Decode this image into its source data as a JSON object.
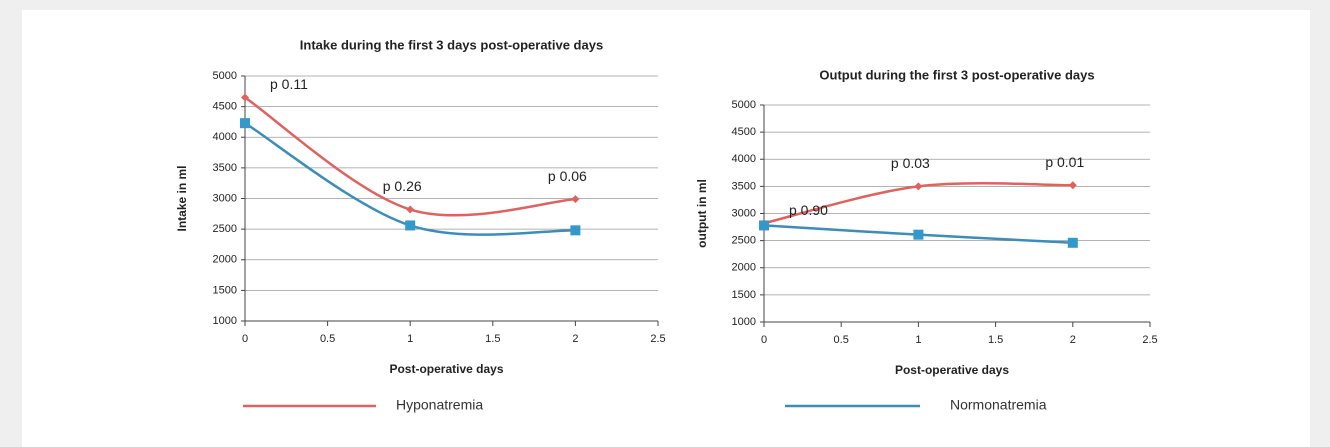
{
  "chart_data": [
    {
      "type": "line",
      "title": "Intake during the first 3 days post-operative days",
      "x_label": "Post-operative days",
      "y_label": "Intake in ml",
      "x": [
        0,
        1,
        2
      ],
      "series": [
        {
          "name": "Hyponatremia",
          "color": "#e0625f",
          "marker": "diamond",
          "values": [
            4650,
            2820,
            2990
          ]
        },
        {
          "name": "Normonatremia",
          "color": "#3c8dbc",
          "marker": "square",
          "values": [
            4230,
            2560,
            2480
          ]
        }
      ],
      "annotations": [
        "p 0.11",
        "p 0.26",
        "p 0.06"
      ],
      "smooth": true,
      "grid": true,
      "xlim": [
        0,
        2.5
      ],
      "xticks": [
        0,
        0.5,
        1,
        1.5,
        2,
        2.5
      ],
      "ylim": [
        1000,
        5000
      ],
      "yticks": [
        1000,
        1500,
        2000,
        2500,
        3000,
        3500,
        4000,
        4500,
        5000
      ]
    },
    {
      "type": "line",
      "title": "Output during the first 3 post-operative days",
      "x_label": "Post-operative days",
      "y_label": "output in ml",
      "x": [
        0,
        1,
        2
      ],
      "series": [
        {
          "name": "Hyponatremia",
          "color": "#e0625f",
          "marker": "diamond",
          "values": [
            2820,
            3500,
            3520
          ]
        },
        {
          "name": "Normonatremia",
          "color": "#3c8dbc",
          "marker": "square",
          "values": [
            2780,
            2610,
            2460
          ]
        }
      ],
      "annotations": [
        "p 0.90",
        "p 0.03",
        "p 0.01"
      ],
      "smooth": true,
      "grid": true,
      "xlim": [
        0,
        2.5
      ],
      "xticks": [
        0,
        0.5,
        1,
        1.5,
        2,
        2.5
      ],
      "ylim": [
        1000,
        5000
      ],
      "yticks": [
        1000,
        1500,
        2000,
        2500,
        3000,
        3500,
        4000,
        4500,
        5000
      ]
    }
  ]
}
